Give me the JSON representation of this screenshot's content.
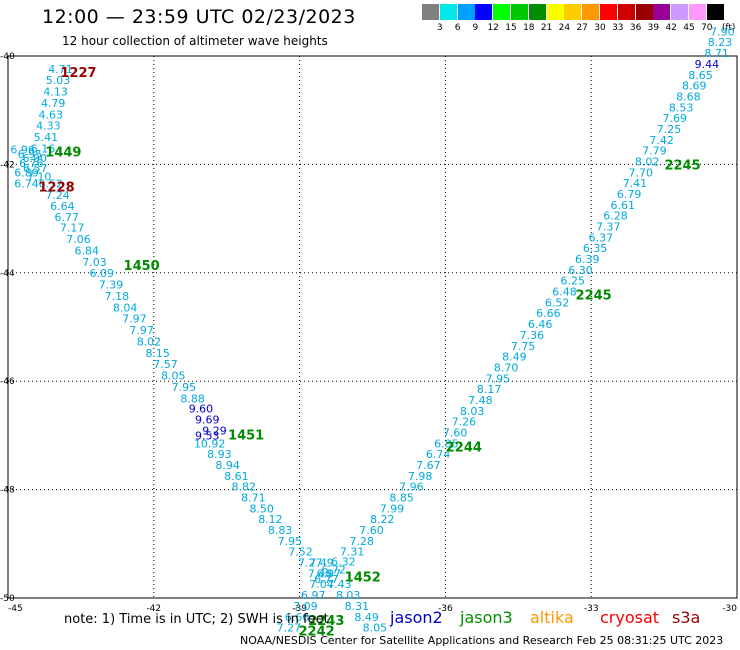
{
  "header": {
    "title": "12:00 — 23:59 UTC 02/23/2023",
    "subtitle": "12 hour collection of altimeter wave heights"
  },
  "legend": {
    "unit": "(ft)",
    "items": [
      {
        "label": "",
        "color": "#808080"
      },
      {
        "label": "3",
        "color": "#00e8e8"
      },
      {
        "label": "6",
        "color": "#00a0ff"
      },
      {
        "label": "9",
        "color": "#0000ff"
      },
      {
        "label": "12",
        "color": "#00ff00"
      },
      {
        "label": "15",
        "color": "#00c800"
      },
      {
        "label": "18",
        "color": "#008c00"
      },
      {
        "label": "21",
        "color": "#ffff00"
      },
      {
        "label": "24",
        "color": "#ffcc00"
      },
      {
        "label": "27",
        "color": "#ff9900"
      },
      {
        "label": "30",
        "color": "#ff0000"
      },
      {
        "label": "33",
        "color": "#cc0000"
      },
      {
        "label": "36",
        "color": "#990000"
      },
      {
        "label": "39",
        "color": "#990099"
      },
      {
        "label": "42",
        "color": "#cc99ff"
      },
      {
        "label": "45",
        "color": "#ff99ff"
      },
      {
        "label": "70",
        "color": "#000000"
      }
    ]
  },
  "chart_data": {
    "type": "scatter",
    "title": "12:00 — 23:59 UTC 02/23/2023",
    "subtitle": "12 hour collection of altimeter wave heights",
    "xlim": [
      -45,
      -30
    ],
    "ylim": [
      -50,
      -40
    ],
    "x_ticks": [
      "-45",
      "-42",
      "-39",
      "-36",
      "-33",
      "-30"
    ],
    "y_ticks": [
      "-40",
      "-42",
      "-44",
      "-46",
      "-48",
      "-50"
    ],
    "x_tick_values": [
      -45,
      -42,
      -39,
      -36,
      -33,
      -30
    ],
    "y_tick_values": [
      -40,
      -42,
      -44,
      -46,
      -48,
      -50
    ],
    "grid": true,
    "series": [
      {
        "name": "jason3",
        "color": "#00aadd",
        "points": [
          {
            "x": -43.92,
            "y": -40.31,
            "v": "4.71"
          },
          {
            "x": -43.97,
            "y": -40.52,
            "v": "5.03"
          },
          {
            "x": -44.02,
            "y": -40.73,
            "v": "4.13"
          },
          {
            "x": -44.07,
            "y": -40.94,
            "v": "4.79"
          },
          {
            "x": -44.12,
            "y": -41.15,
            "v": "4.63"
          },
          {
            "x": -44.17,
            "y": -41.36,
            "v": "4.33"
          },
          {
            "x": -44.22,
            "y": -41.57,
            "v": "5.41"
          },
          {
            "x": -44.28,
            "y": -41.78,
            "v": "6.16"
          },
          {
            "x": -44.7,
            "y": -41.8,
            "v": "6.96"
          },
          {
            "x": -44.55,
            "y": -41.88,
            "v": "6.95"
          },
          {
            "x": -44.45,
            "y": -41.96,
            "v": "6.90"
          },
          {
            "x": -44.52,
            "y": -42.05,
            "v": "6.76"
          },
          {
            "x": -44.44,
            "y": -42.14,
            "v": "6.57"
          },
          {
            "x": -44.62,
            "y": -42.22,
            "v": "6.89"
          },
          {
            "x": -44.36,
            "y": -42.3,
            "v": "7.10"
          },
          {
            "x": -44.62,
            "y": -42.43,
            "v": "6.74"
          },
          {
            "x": -44.12,
            "y": -42.43,
            "v": "6.52"
          },
          {
            "x": -43.98,
            "y": -42.64,
            "v": "7.24"
          },
          {
            "x": -43.88,
            "y": -42.84,
            "v": "6.64"
          },
          {
            "x": -43.79,
            "y": -43.04,
            "v": "6.77"
          },
          {
            "x": -43.68,
            "y": -43.24,
            "v": "7.17"
          },
          {
            "x": -43.55,
            "y": -43.45,
            "v": "7.06"
          },
          {
            "x": -43.38,
            "y": -43.66,
            "v": "6.84"
          },
          {
            "x": -43.22,
            "y": -43.87,
            "v": "7.03"
          },
          {
            "x": -43.07,
            "y": -44.08,
            "v": "6.09"
          },
          {
            "x": -42.88,
            "y": -44.29,
            "v": "7.39"
          },
          {
            "x": -42.76,
            "y": -44.5,
            "v": "7.18"
          },
          {
            "x": -42.59,
            "y": -44.71,
            "v": "8.04"
          },
          {
            "x": -42.4,
            "y": -44.92,
            "v": "7.97"
          },
          {
            "x": -42.25,
            "y": -45.13,
            "v": "7.97"
          },
          {
            "x": -42.1,
            "y": -45.34,
            "v": "8.02"
          },
          {
            "x": -41.92,
            "y": -45.55,
            "v": "8.15"
          },
          {
            "x": -41.76,
            "y": -45.76,
            "v": "7.57"
          },
          {
            "x": -41.6,
            "y": -45.97,
            "v": "8.05"
          },
          {
            "x": -41.38,
            "y": -46.18,
            "v": "7.95"
          },
          {
            "x": -41.2,
            "y": -46.39,
            "v": "8.88"
          },
          {
            "x": -40.85,
            "y": -47.22,
            "v": "10.92"
          },
          {
            "x": -40.65,
            "y": -47.42,
            "v": "8.93"
          },
          {
            "x": -40.48,
            "y": -47.62,
            "v": "8.94"
          },
          {
            "x": -40.3,
            "y": -47.82,
            "v": "8.61"
          },
          {
            "x": -40.15,
            "y": -48.02,
            "v": "8.82"
          },
          {
            "x": -39.95,
            "y": -48.22,
            "v": "8.71"
          },
          {
            "x": -39.78,
            "y": -48.42,
            "v": "8.50"
          },
          {
            "x": -39.6,
            "y": -48.62,
            "v": "8.12"
          },
          {
            "x": -39.4,
            "y": -48.82,
            "v": "8.83"
          },
          {
            "x": -39.2,
            "y": -49.02,
            "v": "7.95"
          },
          {
            "x": -38.98,
            "y": -49.22,
            "v": "7.52"
          },
          {
            "x": -38.78,
            "y": -49.42,
            "v": "7.27"
          },
          {
            "x": -38.58,
            "y": -49.62,
            "v": "7.48"
          },
          {
            "x": -38.45,
            "y": -49.72,
            "v": "6.77"
          },
          {
            "x": -38.3,
            "y": -49.55,
            "v": "6.72"
          },
          {
            "x": -38.1,
            "y": -49.4,
            "v": "6.32"
          },
          {
            "x": -37.92,
            "y": -49.22,
            "v": "7.31"
          },
          {
            "x": -37.72,
            "y": -49.02,
            "v": "7.28"
          },
          {
            "x": -37.52,
            "y": -48.82,
            "v": "7.60"
          },
          {
            "x": -37.3,
            "y": -48.62,
            "v": "8.22"
          },
          {
            "x": -37.1,
            "y": -48.42,
            "v": "7.99"
          },
          {
            "x": -36.9,
            "y": -48.22,
            "v": "8.85"
          },
          {
            "x": -36.7,
            "y": -48.02,
            "v": "7.96"
          },
          {
            "x": -36.52,
            "y": -47.82,
            "v": "7.98"
          },
          {
            "x": -36.35,
            "y": -47.62,
            "v": "7.67"
          },
          {
            "x": -36.15,
            "y": -47.42,
            "v": "6.74"
          },
          {
            "x": -35.98,
            "y": -47.22,
            "v": "6.85"
          },
          {
            "x": -35.8,
            "y": -47.02,
            "v": "7.60"
          },
          {
            "x": -35.62,
            "y": -46.82,
            "v": "7.26"
          },
          {
            "x": -35.45,
            "y": -46.62,
            "v": "8.03"
          },
          {
            "x": -35.28,
            "y": -46.42,
            "v": "7.48"
          },
          {
            "x": -35.1,
            "y": -46.22,
            "v": "8.17"
          },
          {
            "x": -34.92,
            "y": -46.02,
            "v": "7.95"
          },
          {
            "x": -34.75,
            "y": -45.82,
            "v": "8.70"
          },
          {
            "x": -34.58,
            "y": -45.62,
            "v": "8.49"
          },
          {
            "x": -34.4,
            "y": -45.42,
            "v": "7.75"
          },
          {
            "x": -34.22,
            "y": -45.22,
            "v": "7.36"
          },
          {
            "x": -34.05,
            "y": -45.02,
            "v": "6.46"
          },
          {
            "x": -33.88,
            "y": -44.82,
            "v": "6.66"
          },
          {
            "x": -33.7,
            "y": -44.62,
            "v": "6.52"
          },
          {
            "x": -33.55,
            "y": -44.42,
            "v": "6.48"
          },
          {
            "x": -33.38,
            "y": -44.22,
            "v": "6.25"
          },
          {
            "x": -33.22,
            "y": -44.02,
            "v": "6.30"
          },
          {
            "x": -33.08,
            "y": -43.82,
            "v": "6.39"
          },
          {
            "x": -32.92,
            "y": -43.62,
            "v": "6.35"
          },
          {
            "x": -32.8,
            "y": -43.42,
            "v": "6.37"
          },
          {
            "x": -32.65,
            "y": -43.22,
            "v": "7.37"
          },
          {
            "x": -32.5,
            "y": -43.02,
            "v": "6.28"
          },
          {
            "x": -32.35,
            "y": -42.82,
            "v": "6.61"
          },
          {
            "x": -32.22,
            "y": -42.62,
            "v": "6.79"
          },
          {
            "x": -32.1,
            "y": -42.42,
            "v": "7.41"
          },
          {
            "x": -31.98,
            "y": -42.22,
            "v": "7.70"
          },
          {
            "x": -31.85,
            "y": -42.02,
            "v": "8.02"
          },
          {
            "x": -31.7,
            "y": -41.82,
            "v": "7.79"
          },
          {
            "x": -31.55,
            "y": -41.62,
            "v": "7.42"
          },
          {
            "x": -31.4,
            "y": -41.42,
            "v": "7.25"
          },
          {
            "x": -31.28,
            "y": -41.22,
            "v": "7.69"
          },
          {
            "x": -31.15,
            "y": -41.02,
            "v": "8.53"
          },
          {
            "x": -31.0,
            "y": -40.82,
            "v": "8.68"
          },
          {
            "x": -30.88,
            "y": -40.62,
            "v": "8.69"
          },
          {
            "x": -30.75,
            "y": -40.42,
            "v": "8.65"
          },
          {
            "x": -30.42,
            "y": -40.02,
            "v": "8.71"
          },
          {
            "x": -30.35,
            "y": -39.82,
            "v": "8.23"
          },
          {
            "x": -30.3,
            "y": -39.62,
            "v": "7.90"
          },
          {
            "x": -38.55,
            "y": -49.42,
            "v": "7.49"
          },
          {
            "x": -38.4,
            "y": -49.62,
            "v": "6.97"
          },
          {
            "x": -38.55,
            "y": -49.82,
            "v": "7.04"
          },
          {
            "x": -38.72,
            "y": -50.02,
            "v": "6.97"
          },
          {
            "x": -38.88,
            "y": -50.22,
            "v": "7.09"
          },
          {
            "x": -39.05,
            "y": -50.42,
            "v": "6.60"
          },
          {
            "x": -39.22,
            "y": -50.62,
            "v": "7.27"
          },
          {
            "x": -38.18,
            "y": -49.82,
            "v": "7.43"
          },
          {
            "x": -38.0,
            "y": -50.02,
            "v": "8.03"
          },
          {
            "x": -37.82,
            "y": -50.22,
            "v": "8.31"
          },
          {
            "x": -37.62,
            "y": -50.42,
            "v": "8.49"
          },
          {
            "x": -37.45,
            "y": -50.62,
            "v": "8.05"
          }
        ]
      },
      {
        "name": "jason3-blue",
        "color": "#0000cc",
        "points": [
          {
            "x": -41.03,
            "y": -46.58,
            "v": "9.60"
          },
          {
            "x": -40.9,
            "y": -46.78,
            "v": "9.69"
          },
          {
            "x": -40.75,
            "y": -46.98,
            "v": "9.29"
          },
          {
            "x": -40.9,
            "y": -47.08,
            "v": "9.53"
          },
          {
            "x": -30.62,
            "y": -40.22,
            "v": "9.44"
          }
        ]
      }
    ],
    "time_labels": [
      {
        "x": -43.55,
        "y": -40.31,
        "v": "1227",
        "color": "#990000"
      },
      {
        "x": -44.0,
        "y": -42.43,
        "v": "1228",
        "color": "#990000"
      },
      {
        "x": -43.86,
        "y": -41.78,
        "v": "1449",
        "color": "#008c00"
      },
      {
        "x": -42.25,
        "y": -43.87,
        "v": "1450",
        "color": "#008c00"
      },
      {
        "x": -40.1,
        "y": -47.0,
        "v": "1451",
        "color": "#008c00"
      },
      {
        "x": -37.7,
        "y": -49.62,
        "v": "1452",
        "color": "#008c00"
      },
      {
        "x": -38.45,
        "y": -50.42,
        "v": "2243",
        "color": "#008c00"
      },
      {
        "x": -38.65,
        "y": -50.62,
        "v": "2242",
        "color": "#008c00"
      },
      {
        "x": -35.62,
        "y": -47.22,
        "v": "2244",
        "color": "#008c00"
      },
      {
        "x": -32.95,
        "y": -44.42,
        "v": "2245",
        "color": "#008c00"
      },
      {
        "x": -31.12,
        "y": -42.02,
        "v": "2245",
        "color": "#008c00"
      }
    ]
  },
  "footer": {
    "note": "note:  1) Time is in UTC; 2) SWH is in feet",
    "satellites": [
      {
        "name": "jason2",
        "color": "#0000cc"
      },
      {
        "name": "jason3",
        "color": "#008c00"
      },
      {
        "name": "altika",
        "color": "#ff9900"
      },
      {
        "name": "cryosat",
        "color": "#ff0000"
      },
      {
        "name": "s3a",
        "color": "#990000"
      }
    ],
    "credit": "NOAA/NESDIS Center for Satellite Applications and Research     Feb 25 08:31:25 UTC 2023"
  }
}
